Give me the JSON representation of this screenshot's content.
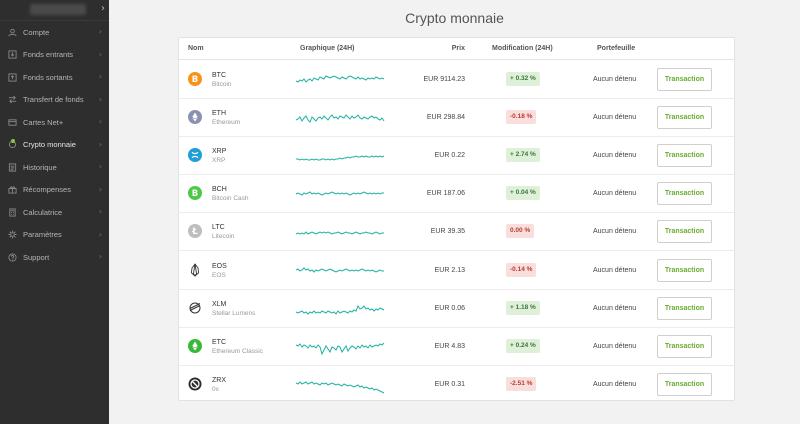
{
  "sidebar": {
    "items": [
      {
        "label": "Compte",
        "icon": "user-icon"
      },
      {
        "label": "Fonds entrants",
        "icon": "download-icon"
      },
      {
        "label": "Fonds sortants",
        "icon": "upload-icon"
      },
      {
        "label": "Transfert de fonds",
        "icon": "transfer-icon"
      },
      {
        "label": "Cartes Net+",
        "icon": "card-icon"
      },
      {
        "label": "Crypto monnaie",
        "icon": "crypto-icon",
        "active": true
      },
      {
        "label": "Historique",
        "icon": "history-icon"
      },
      {
        "label": "Récompenses",
        "icon": "gift-icon"
      },
      {
        "label": "Calculatrice",
        "icon": "calculator-icon"
      },
      {
        "label": "Paramètres",
        "icon": "gear-icon"
      },
      {
        "label": "Support",
        "icon": "help-icon"
      }
    ]
  },
  "page": {
    "title": "Crypto monnaie"
  },
  "table": {
    "headers": {
      "name": "Nom",
      "chart": "Graphique (24H)",
      "price": "Prix",
      "change": "Modification (24H)",
      "portfolio": "Portefeuille"
    },
    "button_label": "Transaction",
    "rows": [
      {
        "symbol": "BTC",
        "name": "Bitcoin",
        "price": "EUR 9114.23",
        "change": "+ 0.32 %",
        "trend": "up",
        "holding": "Aucun détenu",
        "icon_color": "#f7931a",
        "icon": "bitcoin-icon",
        "spark": [
          14,
          15,
          13,
          14,
          12,
          15,
          13,
          12,
          14,
          11,
          12,
          13,
          10,
          11,
          12,
          9,
          10,
          11,
          10,
          9,
          10,
          11,
          12,
          10,
          11,
          12,
          10,
          9,
          10,
          11,
          12,
          10,
          12,
          11,
          12,
          13,
          11,
          12,
          11,
          12,
          10,
          11,
          12,
          11,
          12
        ]
      },
      {
        "symbol": "ETH",
        "name": "Ethereum",
        "price": "EUR 298.84",
        "change": "-0.18 %",
        "trend": "down",
        "holding": "Aucun détenu",
        "icon_color": "#8a92b2",
        "icon": "ethereum-icon",
        "spark": [
          15,
          14,
          12,
          16,
          13,
          11,
          15,
          17,
          12,
          14,
          16,
          13,
          12,
          14,
          11,
          13,
          15,
          12,
          10,
          13,
          12,
          14,
          11,
          12,
          13,
          10,
          12,
          14,
          11,
          13,
          12,
          10,
          13,
          14,
          12,
          13,
          14,
          12,
          11,
          13,
          12,
          14,
          15,
          13,
          16
        ]
      },
      {
        "symbol": "XRP",
        "name": "XRP",
        "price": "EUR 0.22",
        "change": "+ 2.74 %",
        "trend": "up",
        "holding": "Aucun détenu",
        "icon_color": "#1e9fd8",
        "icon": "xrp-icon",
        "spark": [
          16,
          16,
          17,
          16,
          17,
          16,
          17,
          17,
          16,
          17,
          16,
          17,
          17,
          16,
          16,
          17,
          16,
          17,
          16,
          17,
          16,
          16,
          15,
          16,
          15,
          15,
          14,
          15,
          14,
          14,
          13,
          14,
          14,
          13,
          14,
          13,
          14,
          14,
          13,
          14,
          13,
          14,
          13,
          14,
          13
        ]
      },
      {
        "symbol": "BCH",
        "name": "Bitcoin Cash",
        "price": "EUR 187.06",
        "change": "+ 0.04 %",
        "trend": "up",
        "holding": "Aucun détenu",
        "icon_color": "#4cc947",
        "icon": "bitcoin-cash-icon",
        "spark": [
          13,
          12,
          13,
          14,
          12,
          13,
          12,
          11,
          13,
          12,
          13,
          12,
          13,
          14,
          13,
          12,
          13,
          12,
          11,
          12,
          13,
          12,
          13,
          12,
          13,
          12,
          13,
          14,
          13,
          12,
          13,
          12,
          13,
          12,
          11,
          12,
          13,
          12,
          13,
          12,
          13,
          12,
          13,
          12,
          12
        ]
      },
      {
        "symbol": "LTC",
        "name": "Litecoin",
        "price": "EUR 39.35",
        "change": "0.00 %",
        "trend": "down",
        "holding": "Aucun détenu",
        "icon_color": "#bebebe",
        "icon": "litecoin-icon",
        "spark": [
          15,
          14,
          15,
          14,
          15,
          13,
          15,
          14,
          13,
          14,
          15,
          14,
          13,
          14,
          13,
          14,
          13,
          14,
          15,
          14,
          14,
          13,
          14,
          15,
          14,
          13,
          14,
          14,
          15,
          14,
          13,
          14,
          15,
          14,
          14,
          13,
          14,
          14,
          15,
          14,
          13,
          14,
          15,
          14,
          14
        ]
      },
      {
        "symbol": "EOS",
        "name": "EOS",
        "price": "EUR 2.13",
        "change": "-0.14 %",
        "trend": "down",
        "holding": "Aucun détenu",
        "icon_color": "#333333",
        "icon": "eos-icon",
        "spark": [
          12,
          11,
          13,
          12,
          10,
          12,
          11,
          13,
          12,
          14,
          12,
          13,
          12,
          11,
          12,
          13,
          12,
          11,
          12,
          13,
          14,
          13,
          12,
          13,
          12,
          11,
          12,
          13,
          12,
          13,
          12,
          13,
          12,
          11,
          12,
          13,
          12,
          13,
          12,
          13,
          14,
          13,
          12,
          13,
          13
        ]
      },
      {
        "symbol": "XLM",
        "name": "Stellar Lumens",
        "price": "EUR 0.06",
        "change": "+ 1.18 %",
        "trend": "up",
        "holding": "Aucun détenu",
        "icon_color": "#333333",
        "icon": "stellar-icon",
        "spark": [
          16,
          17,
          16,
          15,
          17,
          16,
          18,
          16,
          17,
          15,
          17,
          16,
          17,
          15,
          16,
          17,
          15,
          16,
          17,
          16,
          18,
          15,
          17,
          16,
          15,
          16,
          17,
          15,
          16,
          14,
          15,
          10,
          13,
          12,
          10,
          13,
          12,
          14,
          13,
          15,
          13,
          14,
          12,
          13,
          14
        ]
      },
      {
        "symbol": "ETC",
        "name": "Ethereum Classic",
        "price": "EUR 4.83",
        "change": "+ 0.24 %",
        "trend": "up",
        "holding": "Aucun détenu",
        "icon_color": "#3ab83a",
        "icon": "ethereum-classic-icon",
        "spark": [
          11,
          12,
          10,
          13,
          11,
          12,
          14,
          11,
          13,
          12,
          14,
          11,
          13,
          20,
          16,
          12,
          15,
          18,
          13,
          14,
          16,
          12,
          13,
          18,
          15,
          12,
          17,
          14,
          12,
          13,
          15,
          12,
          14,
          11,
          13,
          12,
          14,
          11,
          13,
          12,
          11,
          12,
          10,
          11,
          9
        ]
      },
      {
        "symbol": "ZRX",
        "name": "0x",
        "price": "EUR 0.31",
        "change": "-2.51 %",
        "trend": "down",
        "holding": "Aucun détenu",
        "icon_color": "#302c2c",
        "icon": "zrx-icon",
        "spark": [
          11,
          12,
          10,
          12,
          11,
          10,
          12,
          11,
          10,
          12,
          11,
          12,
          13,
          11,
          12,
          11,
          13,
          12,
          11,
          12,
          13,
          12,
          13,
          14,
          12,
          13,
          14,
          13,
          14,
          15,
          14,
          13,
          15,
          14,
          16,
          15,
          16,
          17,
          16,
          18,
          17,
          18,
          19,
          20,
          21
        ]
      }
    ]
  },
  "colors": {
    "accent": "#8bc34a",
    "button_text": "#6aab32",
    "spark": "#20b2a0"
  }
}
